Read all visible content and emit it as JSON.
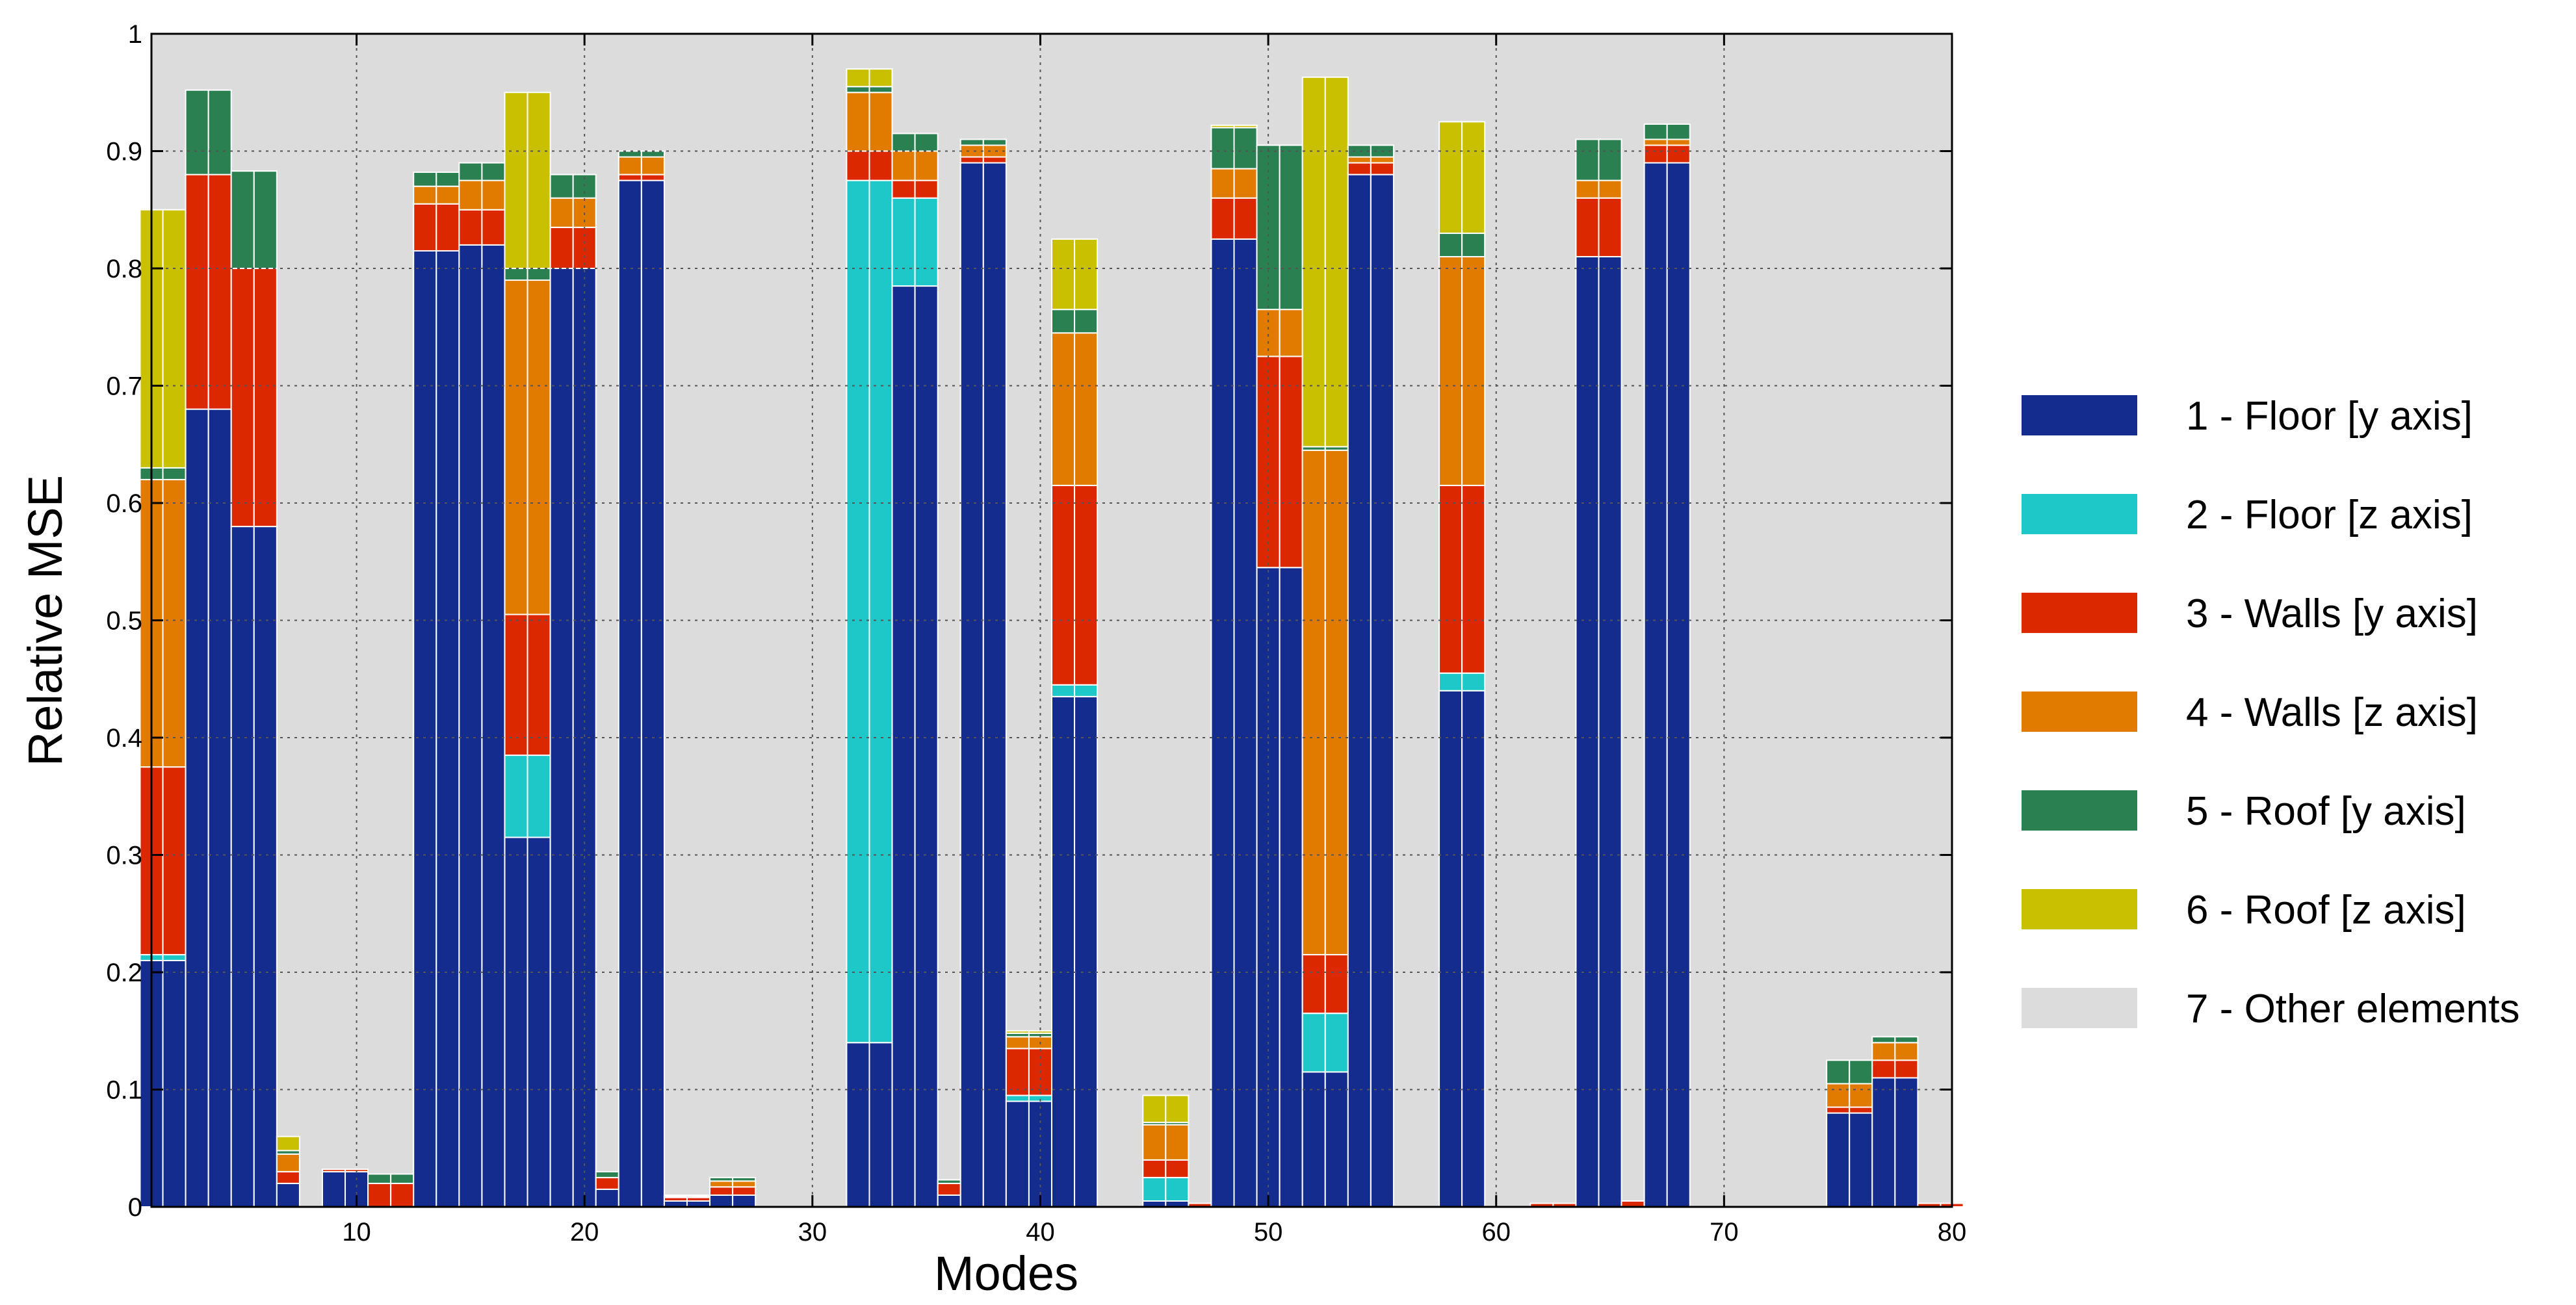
{
  "chart_data": {
    "type": "bar",
    "stacked": true,
    "title": "",
    "xlabel": "Modes",
    "ylabel": "Relative MSE",
    "xlim": [
      1,
      80
    ],
    "ylim": [
      0,
      1
    ],
    "x_ticks": [
      10,
      20,
      30,
      40,
      50,
      60,
      70,
      80
    ],
    "y_ticks": [
      0,
      0.1,
      0.2,
      0.3,
      0.4,
      0.5,
      0.6,
      0.7,
      0.8,
      0.9,
      1
    ],
    "y_tick_labels": [
      "0",
      "0.1",
      "0.2",
      "0.3",
      "0.4",
      "0.5",
      "0.6",
      "0.7",
      "0.8",
      "0.9",
      "1"
    ],
    "grid": true,
    "legend_position": "right",
    "modes": [
      1,
      2,
      3,
      4,
      5,
      6,
      7,
      8,
      9,
      10,
      11,
      12,
      13,
      14,
      15,
      16,
      17,
      18,
      19,
      20,
      21,
      22,
      23,
      24,
      25,
      26,
      27,
      28,
      29,
      30,
      31,
      32,
      33,
      34,
      35,
      36,
      37,
      38,
      39,
      40,
      41,
      42,
      43,
      44,
      45,
      46,
      47,
      48,
      49,
      50,
      51,
      52,
      53,
      54,
      55,
      56,
      57,
      58,
      59,
      60,
      61,
      62,
      63,
      64,
      65,
      66,
      67,
      68,
      69,
      70,
      71,
      72,
      73,
      74,
      75,
      76,
      77,
      78,
      79,
      80
    ],
    "series": [
      {
        "name": "1 - Floor [y axis]",
        "color": "#142c8e",
        "values": [
          0.21,
          0.21,
          0.68,
          0.68,
          0.58,
          0.58,
          0.02,
          0,
          0.03,
          0.03,
          0,
          0,
          0.815,
          0.815,
          0.82,
          0.82,
          0.315,
          0.315,
          0.8,
          0.8,
          0.015,
          0.875,
          0.875,
          0.005,
          0.005,
          0.01,
          0.01,
          0,
          0,
          0,
          0,
          0.14,
          0.14,
          0.785,
          0.785,
          0.01,
          0.89,
          0.89,
          0.09,
          0.09,
          0.435,
          0.435,
          0,
          0,
          0.005,
          0.005,
          0,
          0.825,
          0.825,
          0.545,
          0.545,
          0.115,
          0.115,
          0.88,
          0.88,
          0,
          0,
          0.44,
          0.44,
          0,
          0,
          0,
          0,
          0.81,
          0.81,
          0,
          0.89,
          0.89,
          0,
          0,
          0,
          0,
          0,
          0,
          0.08,
          0.08,
          0.11,
          0.11,
          0,
          0
        ]
      },
      {
        "name": "2 - Floor [z axis]",
        "color": "#1ec8c8",
        "values": [
          0.005,
          0.005,
          0,
          0,
          0,
          0,
          0,
          0,
          0,
          0,
          0,
          0,
          0,
          0,
          0,
          0,
          0.07,
          0.07,
          0,
          0,
          0,
          0,
          0,
          0,
          0,
          0,
          0,
          0,
          0,
          0,
          0,
          0.735,
          0.735,
          0.075,
          0.075,
          0,
          0,
          0,
          0.005,
          0.005,
          0.01,
          0.01,
          0,
          0,
          0.02,
          0.02,
          0,
          0,
          0,
          0,
          0,
          0.05,
          0.05,
          0,
          0,
          0,
          0,
          0.015,
          0.015,
          0,
          0,
          0,
          0,
          0,
          0,
          0,
          0,
          0,
          0,
          0,
          0,
          0,
          0,
          0,
          0,
          0,
          0,
          0,
          0,
          0
        ]
      },
      {
        "name": "3 - Walls [y axis]",
        "color": "#dc2800",
        "values": [
          0.16,
          0.16,
          0.2,
          0.2,
          0.22,
          0.22,
          0.01,
          0,
          0.002,
          0.002,
          0.02,
          0.02,
          0.04,
          0.04,
          0.03,
          0.03,
          0.12,
          0.12,
          0.035,
          0.035,
          0.01,
          0.005,
          0.005,
          0.003,
          0.003,
          0.007,
          0.007,
          0,
          0,
          0,
          0,
          0.025,
          0.025,
          0.015,
          0.015,
          0.01,
          0.005,
          0.005,
          0.04,
          0.04,
          0.17,
          0.17,
          0,
          0,
          0.015,
          0.015,
          0.003,
          0.035,
          0.035,
          0.18,
          0.18,
          0.05,
          0.05,
          0.01,
          0.01,
          0,
          0,
          0.16,
          0.16,
          0,
          0,
          0.003,
          0.003,
          0.05,
          0.05,
          0.005,
          0.015,
          0.015,
          0,
          0,
          0,
          0,
          0,
          0,
          0.005,
          0.005,
          0.015,
          0.015,
          0.003,
          0.003
        ]
      },
      {
        "name": "4 - Walls [z axis]",
        "color": "#e07b00",
        "values": [
          0.245,
          0.245,
          0,
          0,
          0,
          0,
          0.015,
          0,
          0,
          0,
          0,
          0,
          0.015,
          0.015,
          0.025,
          0.025,
          0.285,
          0.285,
          0.025,
          0.025,
          0,
          0.015,
          0.015,
          0.001,
          0.001,
          0.005,
          0.005,
          0,
          0,
          0,
          0,
          0.05,
          0.05,
          0.025,
          0.025,
          0,
          0.01,
          0.01,
          0.01,
          0.01,
          0.13,
          0.13,
          0,
          0,
          0.03,
          0.03,
          0,
          0.025,
          0.025,
          0.04,
          0.04,
          0.43,
          0.43,
          0.005,
          0.005,
          0,
          0,
          0.195,
          0.195,
          0,
          0,
          0,
          0,
          0.015,
          0.015,
          0,
          0.005,
          0.005,
          0,
          0,
          0,
          0,
          0,
          0,
          0.02,
          0.02,
          0.015,
          0.015,
          0,
          0
        ]
      },
      {
        "name": "5 - Roof [y axis]",
        "color": "#2a8050",
        "values": [
          0.01,
          0.01,
          0.072,
          0.072,
          0.083,
          0.083,
          0.003,
          0,
          0,
          0,
          0.008,
          0.008,
          0.012,
          0.012,
          0.015,
          0.015,
          0.01,
          0.01,
          0.02,
          0.02,
          0.005,
          0.005,
          0.005,
          0.001,
          0.001,
          0.003,
          0.003,
          0,
          0,
          0,
          0,
          0.005,
          0.005,
          0.015,
          0.015,
          0.003,
          0.005,
          0.005,
          0.003,
          0.003,
          0.02,
          0.02,
          0,
          0,
          0.002,
          0.002,
          0,
          0.035,
          0.035,
          0.14,
          0.14,
          0.003,
          0.003,
          0.01,
          0.01,
          0,
          0,
          0.02,
          0.02,
          0,
          0,
          0,
          0,
          0.035,
          0.035,
          0,
          0.013,
          0.013,
          0,
          0,
          0,
          0,
          0,
          0,
          0.02,
          0.02,
          0.005,
          0.005,
          0,
          0
        ]
      },
      {
        "name": "6 - Roof [z axis]",
        "color": "#c8c000",
        "values": [
          0.22,
          0.22,
          0,
          0,
          0,
          0,
          0.012,
          0,
          0,
          0,
          0,
          0,
          0,
          0,
          0,
          0,
          0.15,
          0.15,
          0,
          0,
          0,
          0,
          0,
          0,
          0,
          0,
          0,
          0,
          0,
          0,
          0,
          0.015,
          0.015,
          0,
          0,
          0,
          0,
          0,
          0.002,
          0.002,
          0.06,
          0.06,
          0,
          0,
          0.023,
          0.023,
          0,
          0.002,
          0.002,
          0,
          0,
          0.315,
          0.315,
          0,
          0,
          0,
          0,
          0.095,
          0.095,
          0,
          0,
          0,
          0,
          0,
          0,
          0,
          0,
          0,
          0,
          0,
          0,
          0,
          0,
          0,
          0,
          0,
          0,
          0,
          0,
          0
        ]
      },
      {
        "name": "7 - Other elements",
        "color": "#dcdcdc",
        "values": "remainder"
      }
    ],
    "legend": [
      {
        "label": "1 - Floor [y axis]",
        "color": "#142c8e"
      },
      {
        "label": "2 - Floor [z axis]",
        "color": "#1ec8c8"
      },
      {
        "label": "3 - Walls [y axis]",
        "color": "#dc2800"
      },
      {
        "label": "4 - Walls [z axis]",
        "color": "#e07b00"
      },
      {
        "label": "5 - Roof [y axis]",
        "color": "#2a8050"
      },
      {
        "label": "6 - Roof [z axis]",
        "color": "#c8c000"
      },
      {
        "label": "7 - Other elements",
        "color": "#dcdcdc"
      }
    ]
  }
}
